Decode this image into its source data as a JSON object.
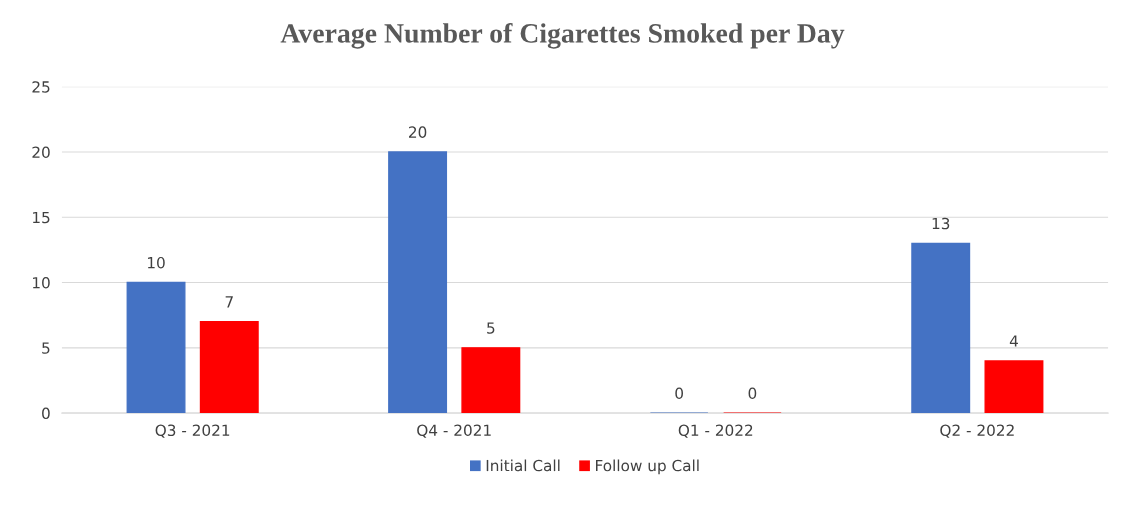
{
  "chart_data": {
    "type": "bar",
    "title": "Average Number of Cigarettes Smoked per Day",
    "categories": [
      "Q3 - 2021",
      "Q4 - 2021",
      "Q1 - 2022",
      "Q2 - 2022"
    ],
    "series": [
      {
        "name": "Initial Call",
        "color": "#4472c4",
        "values": [
          10,
          20,
          0,
          13
        ]
      },
      {
        "name": "Follow up Call",
        "color": "#ff0000",
        "values": [
          7,
          5,
          0,
          4
        ]
      }
    ],
    "ylim": [
      0,
      25
    ],
    "yticks": [
      0,
      5,
      10,
      15,
      20,
      25
    ],
    "grid": "y",
    "legend": "bottom",
    "data_labels": true
  }
}
